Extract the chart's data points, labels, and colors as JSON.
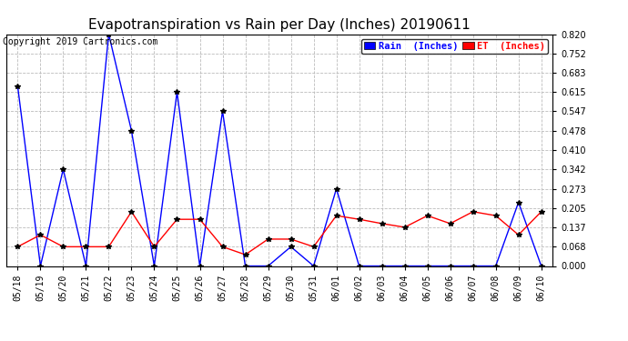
{
  "title": "Evapotranspiration vs Rain per Day (Inches) 20190611",
  "copyright": "Copyright 2019 Cartronics.com",
  "background_color": "#ffffff",
  "plot_bg_color": "#ffffff",
  "grid_color": "#bbbbbb",
  "x_labels": [
    "05/18",
    "05/19",
    "05/20",
    "05/21",
    "05/22",
    "05/23",
    "05/24",
    "05/25",
    "05/26",
    "05/27",
    "05/28",
    "05/29",
    "05/30",
    "05/31",
    "06/01",
    "06/02",
    "06/03",
    "06/04",
    "06/05",
    "06/06",
    "06/07",
    "06/08",
    "06/09",
    "06/10"
  ],
  "rain_inches": [
    0.636,
    0.0,
    0.342,
    0.0,
    0.82,
    0.478,
    0.0,
    0.615,
    0.0,
    0.547,
    0.0,
    0.0,
    0.068,
    0.0,
    0.273,
    0.0,
    0.0,
    0.0,
    0.0,
    0.0,
    0.0,
    0.0,
    0.225,
    0.0
  ],
  "et_inches": [
    0.068,
    0.11,
    0.068,
    0.068,
    0.068,
    0.192,
    0.068,
    0.165,
    0.165,
    0.068,
    0.04,
    0.095,
    0.095,
    0.068,
    0.178,
    0.165,
    0.15,
    0.137,
    0.178,
    0.15,
    0.192,
    0.178,
    0.11,
    0.192
  ],
  "rain_color": "#0000ff",
  "et_color": "#ff0000",
  "rain_label": "Rain  (Inches)",
  "et_label": "ET  (Inches)",
  "ylim": [
    0.0,
    0.82
  ],
  "yticks": [
    0.0,
    0.068,
    0.137,
    0.205,
    0.273,
    0.342,
    0.41,
    0.478,
    0.547,
    0.615,
    0.683,
    0.752,
    0.82
  ],
  "title_fontsize": 11,
  "copyright_fontsize": 7,
  "legend_fontsize": 7.5,
  "tick_fontsize": 7
}
